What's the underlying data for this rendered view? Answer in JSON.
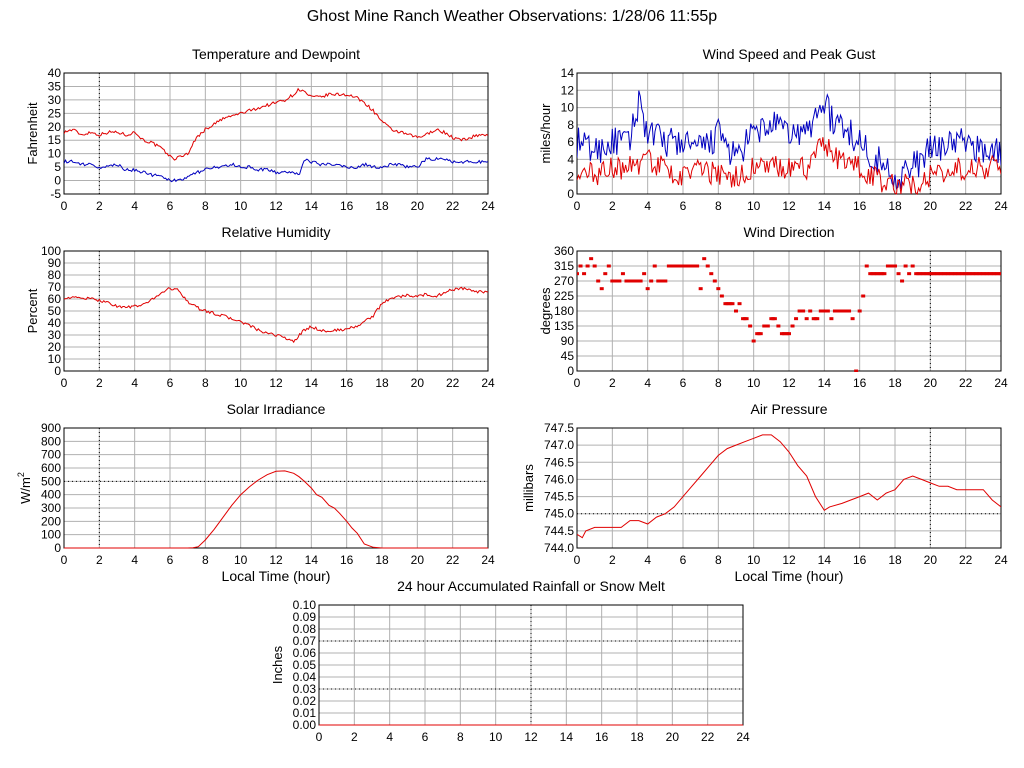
{
  "page": {
    "title": "Ghost Mine Ranch Weather Observations: 1/28/06 11:55p"
  },
  "colors": {
    "primary_series": "#e00000",
    "secondary_series": "#0000c0",
    "grid": "#b0b0b0",
    "frame": "#000000"
  },
  "chart_data": [
    {
      "id": "temperature",
      "type": "line",
      "title": "Temperature and Dewpoint",
      "xlabel": "",
      "ylabel": "Fahrenheit",
      "xlim": [
        0,
        24
      ],
      "ylim": [
        -5,
        40
      ],
      "yticks": [
        "-5",
        "0",
        "5",
        "10",
        "15",
        "20",
        "25",
        "30",
        "35",
        "40"
      ],
      "xticks": [
        "0",
        "2",
        "4",
        "6",
        "8",
        "10",
        "12",
        "14",
        "16",
        "18",
        "20",
        "22",
        "24"
      ],
      "ref_x": 2,
      "series": [
        {
          "color": "#e00000",
          "noise": 0.6,
          "x": [
            0,
            0.5,
            1,
            1.5,
            2,
            2.5,
            3,
            3.5,
            4,
            4.5,
            5,
            5.5,
            6,
            6.3,
            6.6,
            7,
            7.5,
            8,
            8.5,
            9,
            9.5,
            10,
            10.5,
            11,
            11.5,
            12,
            12.5,
            13,
            13.3,
            13.6,
            14,
            14.5,
            15,
            15.5,
            16,
            16.5,
            17,
            17.5,
            18,
            18.5,
            19,
            19.5,
            20,
            20.5,
            21,
            21.5,
            22,
            22.5,
            23,
            23.5,
            24
          ],
          "y": [
            18,
            19,
            17,
            18,
            17,
            18,
            18,
            17,
            18,
            15,
            14,
            12,
            9,
            8,
            9,
            10,
            16,
            19,
            21,
            23,
            24,
            25,
            26,
            27,
            28,
            29,
            30,
            32,
            34,
            33,
            31,
            31,
            32,
            32,
            32,
            31,
            29,
            26,
            22,
            19,
            18,
            17,
            16,
            17,
            19,
            18,
            16,
            15,
            16,
            17,
            17
          ]
        },
        {
          "color": "#0000c0",
          "noise": 0.6,
          "x": [
            0,
            0.5,
            1,
            1.5,
            2,
            2.5,
            3,
            3.5,
            4,
            4.5,
            5,
            5.5,
            6,
            6.5,
            7,
            7.5,
            8,
            8.5,
            9,
            9.5,
            10,
            10.5,
            11,
            11.5,
            12,
            12.5,
            13,
            13.3,
            13.6,
            14,
            14.5,
            15,
            15.5,
            16,
            16.5,
            17,
            17.5,
            18,
            18.5,
            19,
            19.5,
            20,
            20.5,
            21,
            21.5,
            22,
            22.5,
            23,
            23.5,
            24
          ],
          "y": [
            7,
            7,
            6,
            6,
            5,
            5,
            6,
            4,
            4,
            3,
            2,
            2,
            0,
            0,
            1,
            3,
            4,
            5,
            5,
            6,
            5,
            5,
            4,
            4,
            3,
            3,
            3,
            2,
            8,
            7,
            6,
            6,
            6,
            5,
            5,
            6,
            5,
            5,
            6,
            6,
            5,
            5,
            8,
            8,
            8,
            7,
            7,
            7,
            7,
            7
          ]
        }
      ]
    },
    {
      "id": "wind_speed",
      "type": "line",
      "title": "Wind Speed and Peak Gust",
      "xlabel": "",
      "ylabel": "miles/hour",
      "xlim": [
        0,
        24
      ],
      "ylim": [
        0,
        14
      ],
      "yticks": [
        "0",
        "2",
        "4",
        "6",
        "8",
        "10",
        "12",
        "14"
      ],
      "xticks": [
        "0",
        "2",
        "4",
        "6",
        "8",
        "10",
        "12",
        "14",
        "16",
        "18",
        "20",
        "22",
        "24"
      ],
      "ref_x": 20,
      "series": [
        {
          "color": "#0000c0",
          "noise": 1.8,
          "x": [
            0,
            1,
            2,
            3,
            3.5,
            4,
            5,
            6,
            7,
            8,
            9,
            10,
            11,
            12,
            13,
            14,
            14.5,
            15,
            16,
            17,
            17.5,
            18,
            19,
            20,
            21,
            22,
            23,
            24
          ],
          "y": [
            6,
            5,
            6,
            6,
            11,
            7,
            6,
            6,
            5,
            7,
            4,
            7,
            8,
            7,
            7,
            11,
            8,
            8,
            6,
            4,
            3,
            2,
            3,
            5,
            6,
            6,
            5,
            5
          ]
        },
        {
          "color": "#e00000",
          "noise": 1.4,
          "x": [
            0,
            1,
            2,
            3,
            4,
            5,
            6,
            7,
            8,
            9,
            10,
            11,
            12,
            13,
            14,
            14.5,
            15,
            16,
            17,
            17.5,
            18,
            19,
            20,
            21,
            22,
            23,
            24
          ],
          "y": [
            3,
            2,
            3,
            3,
            4,
            3,
            2,
            3,
            2,
            2,
            3,
            3,
            3,
            3,
            6,
            4,
            4,
            3,
            2,
            1,
            1,
            1,
            2,
            3,
            3,
            3,
            3
          ]
        }
      ]
    },
    {
      "id": "humidity",
      "type": "line",
      "title": "Relative Humidity",
      "xlabel": "",
      "ylabel": "Percent",
      "xlim": [
        0,
        24
      ],
      "ylim": [
        0,
        100
      ],
      "yticks": [
        "0",
        "10",
        "20",
        "30",
        "40",
        "50",
        "60",
        "70",
        "80",
        "90",
        "100"
      ],
      "xticks": [
        "0",
        "2",
        "4",
        "6",
        "8",
        "10",
        "12",
        "14",
        "16",
        "18",
        "20",
        "22",
        "24"
      ],
      "ref_x": 2,
      "series": [
        {
          "color": "#e00000",
          "noise": 1.2,
          "x": [
            0,
            1,
            2,
            2.5,
            3,
            3.5,
            4,
            4.5,
            5,
            5.5,
            6,
            6.5,
            7,
            7.5,
            8,
            9,
            10,
            10.5,
            11,
            11.5,
            12,
            12.5,
            13,
            13.5,
            14,
            14.5,
            15,
            15.5,
            16,
            16.5,
            17,
            17.5,
            18,
            18.5,
            19,
            19.5,
            20,
            20.5,
            21,
            21.5,
            22,
            22.5,
            23,
            23.5,
            24
          ],
          "y": [
            61,
            61,
            59,
            57,
            54,
            53,
            54,
            55,
            60,
            65,
            69,
            67,
            58,
            53,
            50,
            46,
            41,
            38,
            34,
            31,
            30,
            28,
            24,
            33,
            37,
            34,
            33,
            34,
            35,
            37,
            41,
            46,
            56,
            61,
            62,
            63,
            62,
            64,
            62,
            65,
            68,
            69,
            67,
            66,
            65
          ]
        }
      ]
    },
    {
      "id": "wind_direction",
      "type": "scatter",
      "title": "Wind Direction",
      "xlabel": "",
      "ylabel": "degrees",
      "xlim": [
        0,
        24
      ],
      "ylim": [
        0,
        360
      ],
      "yticks": [
        "0",
        "45",
        "90",
        "135",
        "180",
        "225",
        "270",
        "315",
        "360"
      ],
      "xticks": [
        "0",
        "2",
        "4",
        "6",
        "8",
        "10",
        "12",
        "14",
        "16",
        "18",
        "20",
        "22",
        "24"
      ],
      "ref_x": 20,
      "series": [
        {
          "color": "#e00000",
          "x": [
            0,
            0.2,
            0.4,
            0.6,
            0.8,
            1,
            1.2,
            1.4,
            1.6,
            1.8,
            2,
            2.2,
            2.4,
            2.6,
            2.8,
            3,
            3.2,
            3.4,
            3.6,
            3.8,
            4,
            4.2,
            4.4,
            4.6,
            4.8,
            5,
            5.2,
            5.4,
            5.6,
            5.8,
            6,
            6.2,
            6.4,
            6.6,
            6.8,
            7,
            7.2,
            7.4,
            7.6,
            7.8,
            8,
            8.2,
            8.4,
            8.6,
            8.8,
            9,
            9.2,
            9.4,
            9.6,
            9.8,
            10,
            10.2,
            10.4,
            10.6,
            10.8,
            11,
            11.2,
            11.4,
            11.6,
            11.8,
            12,
            12.2,
            12.4,
            12.6,
            12.8,
            13,
            13.2,
            13.4,
            13.6,
            13.8,
            14,
            14.2,
            14.4,
            14.6,
            14.8,
            15,
            15.2,
            15.4,
            15.6,
            15.8,
            16,
            16.2,
            16.4,
            16.6,
            16.8,
            17,
            17.2,
            17.4,
            17.6,
            17.8,
            18,
            18.2,
            18.4,
            18.6,
            18.8,
            19,
            19.2,
            19.4,
            19.6,
            19.8,
            20,
            20.2,
            20.4,
            20.6,
            20.8,
            21,
            21.2,
            21.4,
            21.6,
            21.8,
            22,
            22.2,
            22.4,
            22.6,
            22.8,
            23,
            23.2,
            23.4,
            23.6,
            23.8,
            24
          ],
          "y": [
            292,
            315,
            292,
            315,
            337,
            315,
            270,
            247,
            292,
            315,
            270,
            270,
            270,
            292,
            270,
            270,
            270,
            270,
            270,
            292,
            247,
            270,
            315,
            270,
            270,
            270,
            315,
            315,
            315,
            315,
            315,
            315,
            315,
            315,
            315,
            247,
            337,
            315,
            292,
            270,
            247,
            225,
            202,
            202,
            202,
            180,
            202,
            157,
            157,
            135,
            90,
            112,
            112,
            135,
            135,
            157,
            157,
            135,
            112,
            112,
            112,
            135,
            157,
            180,
            180,
            157,
            180,
            157,
            157,
            180,
            180,
            180,
            157,
            180,
            180,
            180,
            180,
            180,
            157,
            0,
            180,
            225,
            315,
            292,
            292,
            292,
            292,
            292,
            315,
            315,
            315,
            292,
            270,
            315,
            292,
            315,
            292,
            292,
            292,
            292,
            292,
            292,
            292,
            292,
            292,
            292,
            292,
            292,
            292,
            292,
            292,
            292,
            292,
            292,
            292,
            292,
            292,
            292,
            292,
            292,
            292
          ]
        }
      ]
    },
    {
      "id": "solar",
      "type": "line",
      "title": "Solar Irradiance",
      "xlabel": "Local Time (hour)",
      "ylabel": "W/m",
      "ylabel_sup": "2",
      "xlim": [
        0,
        24
      ],
      "ylim": [
        0,
        900
      ],
      "yticks": [
        "0",
        "100",
        "200",
        "300",
        "400",
        "500",
        "600",
        "700",
        "800",
        "900"
      ],
      "xticks": [
        "0",
        "2",
        "4",
        "6",
        "8",
        "10",
        "12",
        "14",
        "16",
        "18",
        "20",
        "22",
        "24"
      ],
      "ref_x": 2,
      "ref_y": 500,
      "series": [
        {
          "color": "#e00000",
          "noise": 0,
          "x": [
            0,
            7,
            7.3,
            7.6,
            8,
            8.5,
            9,
            9.5,
            10,
            10.5,
            11,
            11.5,
            12,
            12.5,
            13,
            13.3,
            13.6,
            14,
            14.3,
            14.6,
            15,
            15.3,
            15.6,
            16,
            16.3,
            16.6,
            17,
            17.5,
            18,
            24
          ],
          "y": [
            0,
            0,
            2,
            10,
            60,
            140,
            230,
            320,
            400,
            460,
            510,
            550,
            575,
            578,
            560,
            535,
            500,
            450,
            400,
            380,
            320,
            300,
            260,
            200,
            150,
            110,
            30,
            5,
            0,
            0
          ]
        }
      ]
    },
    {
      "id": "pressure",
      "type": "line",
      "title": "Air Pressure",
      "xlabel": "Local Time (hour)",
      "ylabel": "millibars",
      "xlim": [
        0,
        24
      ],
      "ylim": [
        744.0,
        747.5
      ],
      "yticks": [
        "744.0",
        "744.5",
        "745.0",
        "745.5",
        "746.0",
        "746.5",
        "747.0",
        "747.5"
      ],
      "xticks": [
        "0",
        "2",
        "4",
        "6",
        "8",
        "10",
        "12",
        "14",
        "16",
        "18",
        "20",
        "22",
        "24"
      ],
      "ref_x": 20,
      "ref_y": 745.0,
      "series": [
        {
          "color": "#e00000",
          "noise": 0,
          "x": [
            0,
            0.3,
            0.5,
            1,
            2,
            2.5,
            3,
            3.5,
            4,
            4.5,
            5,
            5.5,
            6,
            6.5,
            7,
            7.5,
            8,
            8.5,
            9,
            9.5,
            10,
            10.5,
            11,
            11.5,
            12,
            12.5,
            13,
            13.5,
            14,
            14.3,
            15,
            15.5,
            16,
            16.5,
            17,
            17.5,
            18,
            18.5,
            19,
            19.5,
            20,
            20.5,
            21,
            21.5,
            22,
            22.5,
            23,
            23.5,
            24
          ],
          "y": [
            744.4,
            744.3,
            744.5,
            744.6,
            744.6,
            744.6,
            744.8,
            744.8,
            744.7,
            744.9,
            745.0,
            745.2,
            745.5,
            745.8,
            746.1,
            746.4,
            746.7,
            746.9,
            747.0,
            747.1,
            747.2,
            747.3,
            747.3,
            747.1,
            746.8,
            746.4,
            746.1,
            745.5,
            745.1,
            745.2,
            745.3,
            745.4,
            745.5,
            745.6,
            745.4,
            745.6,
            745.7,
            746.0,
            746.1,
            746.0,
            745.9,
            745.8,
            745.8,
            745.7,
            745.7,
            745.7,
            745.7,
            745.4,
            745.2
          ]
        }
      ]
    },
    {
      "id": "rainfall",
      "type": "line",
      "title": "24 hour Accumulated Rainfall or Snow Melt",
      "xlabel": "",
      "ylabel": "Inches",
      "xlim": [
        0,
        24
      ],
      "ylim": [
        0,
        0.1
      ],
      "yticks": [
        "0.00",
        "0.01",
        "0.02",
        "0.03",
        "0.04",
        "0.05",
        "0.06",
        "0.07",
        "0.08",
        "0.09",
        "0.10"
      ],
      "xticks": [
        "0",
        "2",
        "4",
        "6",
        "8",
        "10",
        "12",
        "14",
        "16",
        "18",
        "20",
        "22",
        "24"
      ],
      "ref_x": 12,
      "ref_y_list": [
        0.03,
        0.07
      ],
      "series": [
        {
          "color": "#e00000",
          "noise": 0,
          "x": [
            0,
            24
          ],
          "y": [
            0,
            0
          ]
        }
      ]
    }
  ]
}
